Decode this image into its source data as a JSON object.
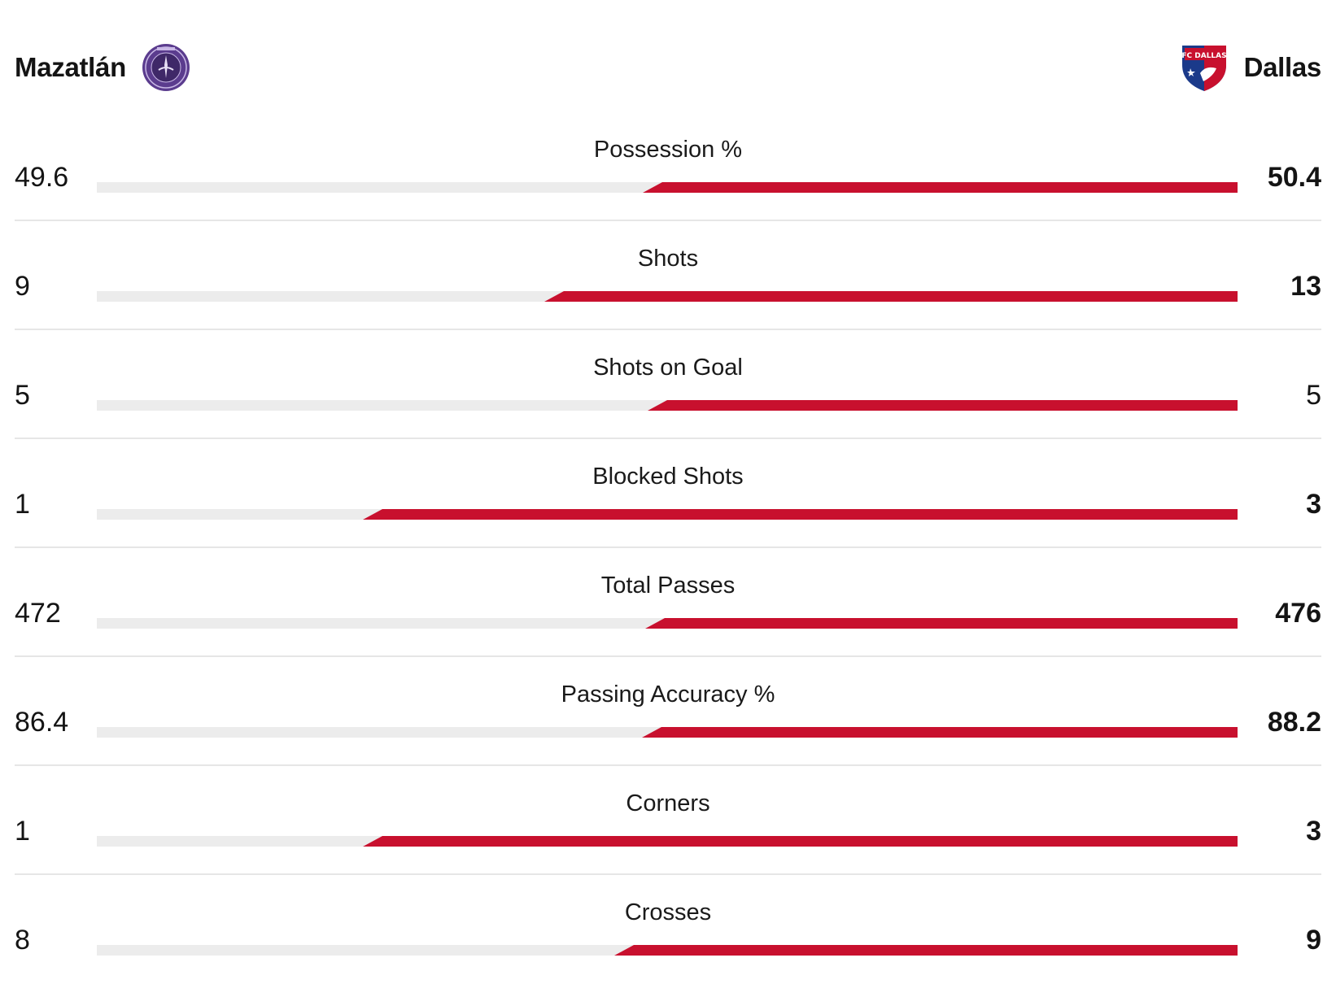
{
  "colors": {
    "away_bar": "#c8102e",
    "home_bar": "#ececec",
    "divider": "#e6e6e6",
    "text": "#141414"
  },
  "teams": {
    "home": {
      "name": "Mazatlán",
      "crest_icon": "mazatlan-crest-icon",
      "crest_color": "#5b3c8e"
    },
    "away": {
      "name": "Dallas",
      "crest_icon": "fc-dallas-crest-icon",
      "crest_text": "FC DALLAS",
      "crest_colors": [
        "#c8102e",
        "#1b3a8a"
      ]
    }
  },
  "stats": [
    {
      "label": "Possession %",
      "home": "49.6",
      "away": "50.4",
      "home_num": 49.6,
      "away_num": 50.4,
      "leader": "away"
    },
    {
      "label": "Shots",
      "home": "9",
      "away": "13",
      "home_num": 9,
      "away_num": 13,
      "leader": "away"
    },
    {
      "label": "Shots on Goal",
      "home": "5",
      "away": "5",
      "home_num": 5,
      "away_num": 5,
      "leader": "none"
    },
    {
      "label": "Blocked Shots",
      "home": "1",
      "away": "3",
      "home_num": 1,
      "away_num": 3,
      "leader": "away"
    },
    {
      "label": "Total Passes",
      "home": "472",
      "away": "476",
      "home_num": 472,
      "away_num": 476,
      "leader": "away"
    },
    {
      "label": "Passing Accuracy %",
      "home": "86.4",
      "away": "88.2",
      "home_num": 86.4,
      "away_num": 88.2,
      "leader": "away"
    },
    {
      "label": "Corners",
      "home": "1",
      "away": "3",
      "home_num": 1,
      "away_num": 3,
      "leader": "away"
    },
    {
      "label": "Crosses",
      "home": "8",
      "away": "9",
      "home_num": 8,
      "away_num": 9,
      "leader": "away"
    }
  ]
}
